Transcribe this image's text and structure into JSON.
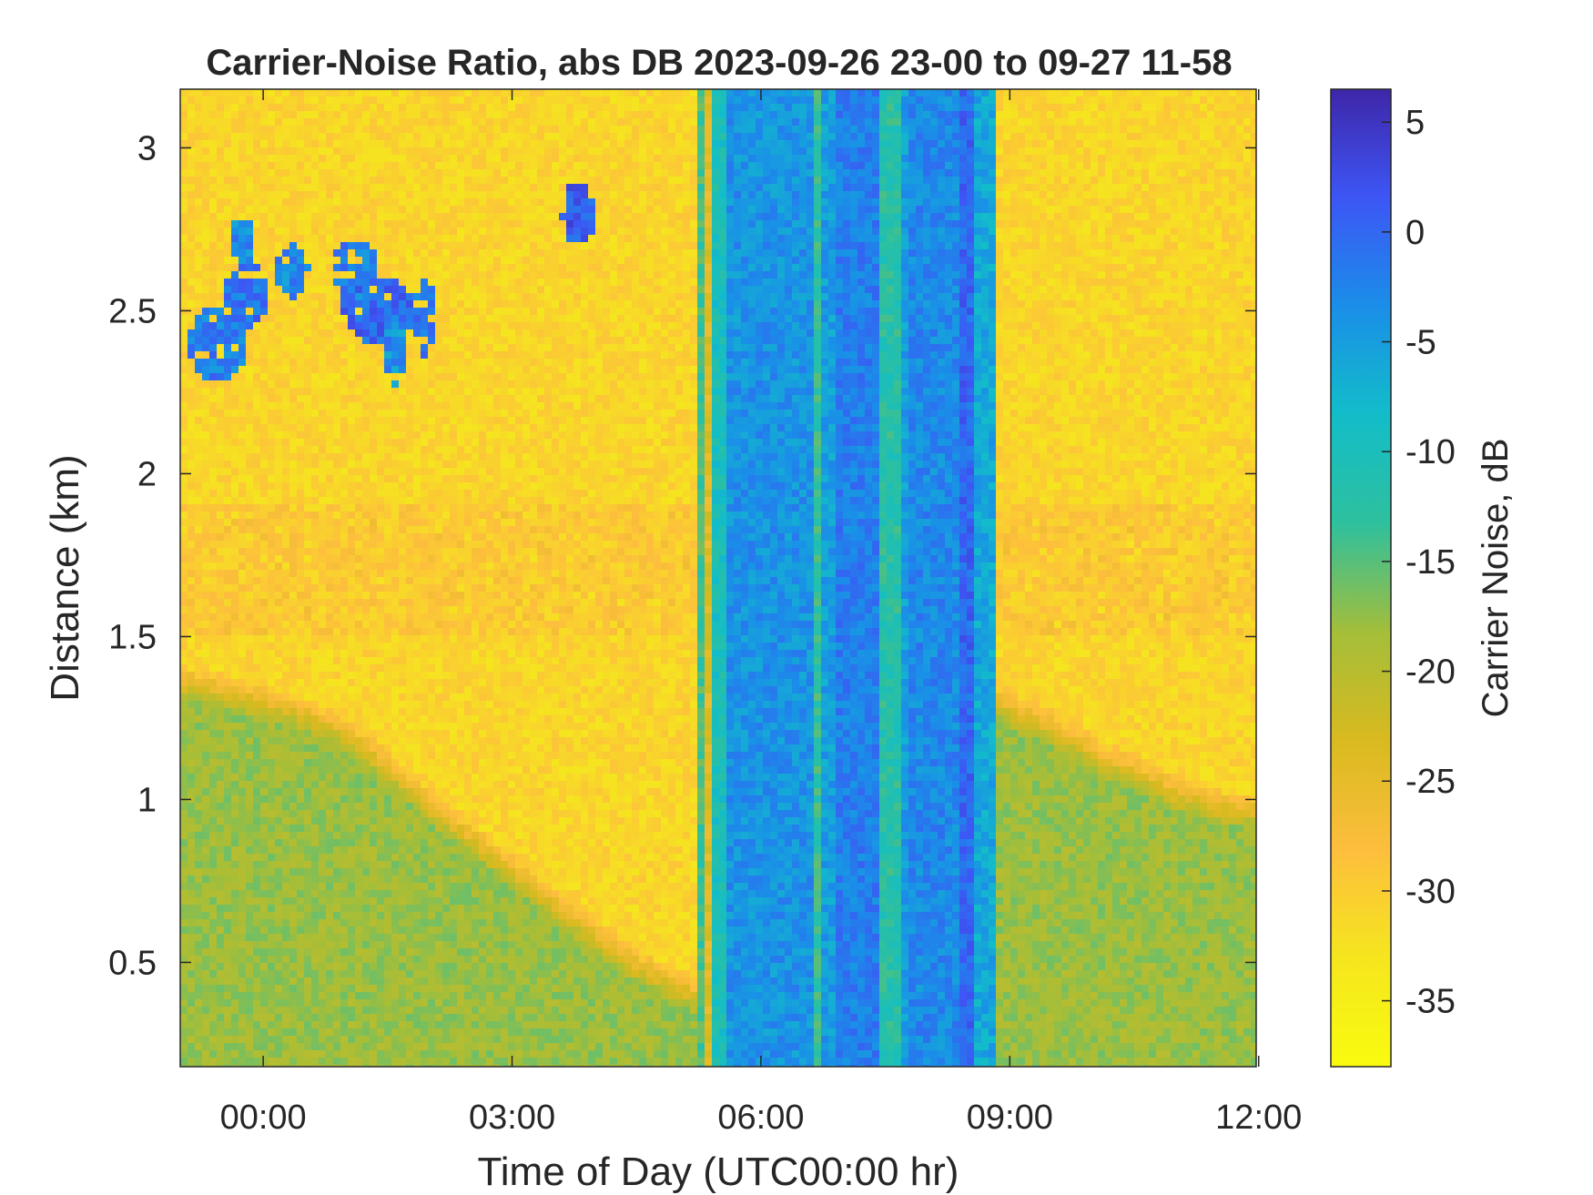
{
  "chart_data": {
    "type": "heatmap",
    "title": "Carrier-Noise Ratio, abs DB 2023-09-26 23-00 to 09-27 11-58",
    "xlabel": "Time of Day (UTC00:00 hr)",
    "ylabel": "Distance (km)",
    "colorbar_label": "Carrier Noise, dB",
    "colormap": "parula",
    "colormap_reversed": true,
    "grid": false,
    "x_unit": "hours relative to 00:00 UTC",
    "xlim": [
      -1.0,
      11.97
    ],
    "ylim": [
      0.18,
      3.18
    ],
    "clim": [
      -38,
      6.5
    ],
    "x_ticks": [
      0,
      3,
      6,
      9,
      12
    ],
    "x_tick_labels": [
      "00:00",
      "03:00",
      "06:00",
      "09:00",
      "12:00"
    ],
    "y_ticks": [
      0.5,
      1,
      1.5,
      2,
      2.5,
      3
    ],
    "y_tick_labels": [
      "0.5",
      "1",
      "1.5",
      "2",
      "2.5",
      "3"
    ],
    "c_ticks": [
      5,
      0,
      -5,
      -10,
      -15,
      -20,
      -25,
      -30,
      -35
    ],
    "c_tick_labels": [
      "5",
      "0",
      "-5",
      "-10",
      "-15",
      "-20",
      "-25",
      "-30",
      "-35"
    ],
    "background_noise_db": -31,
    "boundary_layer": [
      {
        "x": -1.0,
        "y": 1.42
      },
      {
        "x": 0.0,
        "y": 1.36
      },
      {
        "x": 0.5,
        "y": 1.32
      },
      {
        "x": 1.0,
        "y": 1.26
      },
      {
        "x": 1.5,
        "y": 1.16
      },
      {
        "x": 2.0,
        "y": 1.04
      },
      {
        "x": 2.5,
        "y": 0.94
      },
      {
        "x": 3.0,
        "y": 0.84
      },
      {
        "x": 3.5,
        "y": 0.74
      },
      {
        "x": 4.0,
        "y": 0.64
      },
      {
        "x": 4.5,
        "y": 0.55
      },
      {
        "x": 5.2,
        "y": 0.46
      },
      {
        "x": 8.8,
        "y": 1.36
      },
      {
        "x": 9.5,
        "y": 1.28
      },
      {
        "x": 10.0,
        "y": 1.2
      },
      {
        "x": 10.5,
        "y": 1.14
      },
      {
        "x": 11.0,
        "y": 1.08
      },
      {
        "x": 11.5,
        "y": 1.04
      },
      {
        "x": 11.97,
        "y": 1.02
      }
    ],
    "boundary_layer_db": -18,
    "residual_layer_band": {
      "y_range": [
        1.5,
        1.9
      ],
      "db": -25
    },
    "cloud_patches": [
      {
        "x": -0.55,
        "y": 2.4,
        "rx": 0.35,
        "ry": 0.12,
        "db": -2
      },
      {
        "x": -0.2,
        "y": 2.55,
        "rx": 0.25,
        "ry": 0.1,
        "db": -1
      },
      {
        "x": -0.25,
        "y": 2.72,
        "rx": 0.15,
        "ry": 0.08,
        "db": -3
      },
      {
        "x": 0.35,
        "y": 2.62,
        "rx": 0.2,
        "ry": 0.08,
        "db": -3
      },
      {
        "x": 1.1,
        "y": 2.62,
        "rx": 0.3,
        "ry": 0.1,
        "db": -2
      },
      {
        "x": 1.4,
        "y": 2.5,
        "rx": 0.45,
        "ry": 0.1,
        "db": 0
      },
      {
        "x": 1.6,
        "y": 2.38,
        "rx": 0.12,
        "ry": 0.12,
        "db": -4
      },
      {
        "x": 1.95,
        "y": 2.48,
        "rx": 0.12,
        "ry": 0.12,
        "db": -1
      },
      {
        "x": 3.8,
        "y": 2.8,
        "rx": 0.22,
        "ry": 0.09,
        "db": 1
      }
    ],
    "noise_band": {
      "x_range": [
        5.2,
        8.8
      ],
      "stripes": [
        {
          "x0": 5.2,
          "x1": 5.3,
          "db": -14
        },
        {
          "x0": 5.3,
          "x1": 5.4,
          "db": -24
        },
        {
          "x0": 5.4,
          "x1": 5.55,
          "db": -10
        },
        {
          "x0": 5.55,
          "x1": 6.6,
          "db": -4
        },
        {
          "x0": 6.6,
          "x1": 6.72,
          "db": -13
        },
        {
          "x0": 6.72,
          "x1": 6.92,
          "db": -5
        },
        {
          "x0": 6.92,
          "x1": 7.45,
          "db": -2
        },
        {
          "x0": 7.45,
          "x1": 7.7,
          "db": -12
        },
        {
          "x0": 7.7,
          "x1": 7.8,
          "db": -5
        },
        {
          "x0": 7.8,
          "x1": 8.4,
          "db": -3
        },
        {
          "x0": 8.4,
          "x1": 8.55,
          "db": 0
        },
        {
          "x0": 8.55,
          "x1": 8.8,
          "db": -6
        }
      ]
    }
  }
}
